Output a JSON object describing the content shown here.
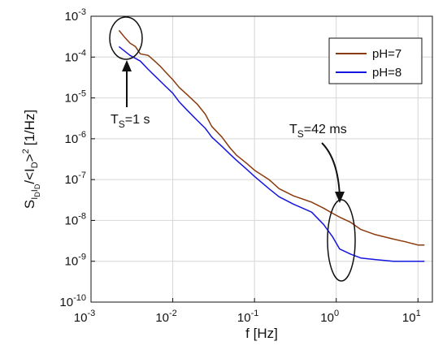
{
  "chart_data": {
    "type": "line",
    "xscale": "log",
    "yscale": "log",
    "xlim": [
      0.001,
      15
    ],
    "ylim": [
      1e-10,
      0.001
    ],
    "grid": true,
    "x_ticks": [
      {
        "base": "10",
        "exp": "-3"
      },
      {
        "base": "10",
        "exp": "-2"
      },
      {
        "base": "10",
        "exp": "-1"
      },
      {
        "base": "10",
        "exp": "0"
      },
      {
        "base": "10",
        "exp": "1"
      }
    ],
    "y_ticks": [
      {
        "base": "10",
        "exp": "-10"
      },
      {
        "base": "10",
        "exp": "-9"
      },
      {
        "base": "10",
        "exp": "-8"
      },
      {
        "base": "10",
        "exp": "-7"
      },
      {
        "base": "10",
        "exp": "-6"
      },
      {
        "base": "10",
        "exp": "-5"
      },
      {
        "base": "10",
        "exp": "-4"
      },
      {
        "base": "10",
        "exp": "-3"
      }
    ],
    "xlabel": "f [Hz]",
    "ylabel": {
      "main": "S",
      "sub1": "I",
      "subsub1": "D",
      "sub2": "I",
      "subsub2": "D",
      "mid": "/<I",
      "sub3": "D",
      "sup": ">",
      "sup2": "2",
      "unit": "[1/Hz]"
    },
    "legend_position": "top-right",
    "series": [
      {
        "name": "pH=7",
        "color": "#8b3a0e",
        "points": [
          [
            0.0022,
            0.00045
          ],
          [
            0.0026,
            0.0003
          ],
          [
            0.003,
            0.00022
          ],
          [
            0.0035,
            0.00018
          ],
          [
            0.004,
            0.00012
          ],
          [
            0.005,
            0.00011
          ],
          [
            0.006,
            8e-05
          ],
          [
            0.007,
            6e-05
          ],
          [
            0.008,
            4.5e-05
          ],
          [
            0.01,
            2.8e-05
          ],
          [
            0.012,
            1.8e-05
          ],
          [
            0.015,
            1.2e-05
          ],
          [
            0.02,
            7e-06
          ],
          [
            0.025,
            4e-06
          ],
          [
            0.03,
            2e-06
          ],
          [
            0.04,
            1.1e-06
          ],
          [
            0.05,
            6e-07
          ],
          [
            0.06,
            4e-07
          ],
          [
            0.08,
            2.5e-07
          ],
          [
            0.1,
            1.7e-07
          ],
          [
            0.15,
            1e-07
          ],
          [
            0.2,
            6e-08
          ],
          [
            0.3,
            4e-08
          ],
          [
            0.5,
            2.8e-08
          ],
          [
            0.7,
            2e-08
          ],
          [
            0.9,
            1.5e-08
          ],
          [
            1.1,
            1.2e-08
          ],
          [
            1.5,
            9e-09
          ],
          [
            2,
            6e-09
          ],
          [
            3,
            4.5e-09
          ],
          [
            5,
            3.5e-09
          ],
          [
            7,
            3e-09
          ],
          [
            10,
            2.5e-09
          ],
          [
            12,
            2.5e-09
          ]
        ]
      },
      {
        "name": "pH=8",
        "color": "#1515e0",
        "points": [
          [
            0.0022,
            0.00018
          ],
          [
            0.003,
            0.00011
          ],
          [
            0.004,
            8e-05
          ],
          [
            0.005,
            5e-05
          ],
          [
            0.006,
            3.5e-05
          ],
          [
            0.008,
            2e-05
          ],
          [
            0.01,
            1.3e-05
          ],
          [
            0.012,
            8e-06
          ],
          [
            0.015,
            5e-06
          ],
          [
            0.02,
            2.8e-06
          ],
          [
            0.025,
            1.8e-06
          ],
          [
            0.03,
            1.1e-06
          ],
          [
            0.04,
            6.5e-07
          ],
          [
            0.05,
            4.2e-07
          ],
          [
            0.06,
            3e-07
          ],
          [
            0.08,
            1.8e-07
          ],
          [
            0.1,
            1.2e-07
          ],
          [
            0.15,
            6e-08
          ],
          [
            0.2,
            3.8e-08
          ],
          [
            0.3,
            2.5e-08
          ],
          [
            0.5,
            1.6e-08
          ],
          [
            0.7,
            8e-09
          ],
          [
            0.9,
            4e-09
          ],
          [
            1.1,
            2e-09
          ],
          [
            1.5,
            1.5e-09
          ],
          [
            2,
            1.2e-09
          ],
          [
            3,
            1.1e-09
          ],
          [
            5,
            1e-09
          ],
          [
            7,
            1e-09
          ],
          [
            10,
            1e-09
          ],
          [
            12,
            1e-09
          ]
        ]
      }
    ],
    "annotations": [
      {
        "base": "T",
        "sub": "S",
        "text": "=1 s",
        "x": 0.0022,
        "y": 3e-06
      },
      {
        "base": "T",
        "sub": "S",
        "text": "=42 ms",
        "x": 0.35,
        "y": 1.2e-06
      }
    ]
  }
}
